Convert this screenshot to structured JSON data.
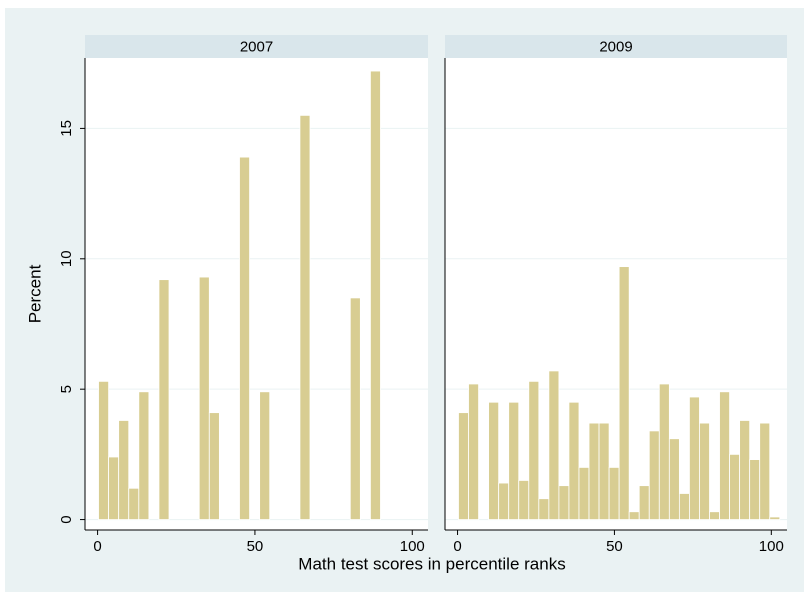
{
  "chart_data": {
    "type": "histogram",
    "xlabel": "Math test scores in percentile ranks",
    "ylabel": "Percent",
    "color": "#d8cd92",
    "grid": true,
    "xlim": [
      -4,
      105
    ],
    "xticks": [
      0,
      50,
      100
    ],
    "ylim": [
      -0.4,
      17.7
    ],
    "yticks": [
      0,
      5,
      10,
      15
    ],
    "bins": [
      0.3,
      3.5,
      6.7,
      9.9,
      13.1,
      16.3,
      19.5,
      22.7,
      25.9,
      29.1,
      32.3,
      35.5,
      38.7,
      41.9,
      45.1,
      48.3,
      51.5,
      54.7,
      57.9,
      61.1,
      64.3,
      67.5,
      70.7,
      73.9,
      77.1,
      80.3,
      83.5,
      86.7,
      89.9,
      93.1,
      96.3,
      99.5,
      102.7
    ],
    "panels": [
      {
        "title": "2007",
        "values": [
          5.3,
          2.4,
          3.8,
          1.2,
          4.9,
          0,
          9.2,
          0,
          0,
          0,
          9.3,
          4.1,
          0,
          0,
          13.9,
          0,
          4.9,
          0,
          0,
          0,
          15.5,
          0,
          0,
          0,
          0,
          8.5,
          0,
          17.2,
          0,
          0,
          0,
          0
        ]
      },
      {
        "title": "2009",
        "values": [
          4.1,
          5.2,
          0,
          4.5,
          1.4,
          4.5,
          1.5,
          5.3,
          0.8,
          5.7,
          1.3,
          4.5,
          2.0,
          3.7,
          3.7,
          2.0,
          9.7,
          0.3,
          1.3,
          3.4,
          5.2,
          3.1,
          1.0,
          4.7,
          3.7,
          0.3,
          4.9,
          2.5,
          3.8,
          2.3,
          3.7,
          0.1
        ]
      }
    ]
  }
}
